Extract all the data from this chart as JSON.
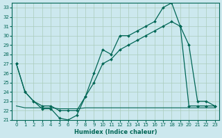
{
  "xlabel": "Humidex (Indice chaleur)",
  "bg_color": "#cce8ee",
  "grid_color": "#aaccbb",
  "line_color": "#006655",
  "xlim": [
    -0.5,
    23.5
  ],
  "ylim": [
    21,
    33.5
  ],
  "yticks": [
    21,
    22,
    23,
    24,
    25,
    26,
    27,
    28,
    29,
    30,
    31,
    32,
    33
  ],
  "xticks": [
    0,
    1,
    2,
    3,
    4,
    5,
    6,
    7,
    8,
    9,
    10,
    11,
    12,
    13,
    14,
    15,
    16,
    17,
    18,
    19,
    20,
    21,
    22,
    23
  ],
  "line1_x": [
    0,
    1,
    2,
    3,
    4,
    5,
    6,
    7,
    8,
    9,
    10,
    11,
    12,
    13,
    14,
    15,
    16,
    17,
    18,
    19,
    20,
    21,
    22,
    23
  ],
  "line1_y": [
    27.0,
    24.0,
    23.0,
    22.2,
    22.2,
    21.2,
    21.0,
    21.5,
    23.5,
    26.0,
    28.5,
    28.0,
    30.0,
    30.0,
    30.5,
    31.0,
    31.5,
    33.0,
    33.5,
    31.0,
    29.0,
    23.0,
    23.0,
    22.5
  ],
  "line2_x": [
    0,
    1,
    2,
    3,
    4,
    5,
    6,
    7,
    8,
    9,
    10,
    11,
    12,
    13,
    14,
    15,
    16,
    17,
    18,
    19,
    20,
    21,
    22,
    23
  ],
  "line2_y": [
    27.0,
    24.0,
    23.0,
    22.5,
    22.5,
    22.0,
    22.0,
    22.0,
    23.5,
    25.0,
    27.0,
    27.5,
    28.5,
    29.0,
    29.5,
    30.0,
    30.5,
    31.0,
    31.5,
    31.0,
    22.5,
    22.5,
    22.5,
    22.5
  ],
  "line3_x": [
    0,
    1,
    2,
    3,
    4,
    5,
    6,
    7,
    8,
    9,
    10,
    11,
    12,
    13,
    14,
    15,
    16,
    17,
    18,
    19,
    20,
    21,
    22,
    23
  ],
  "line3_y": [
    22.5,
    22.3,
    22.3,
    22.3,
    22.3,
    22.2,
    22.2,
    22.2,
    22.3,
    22.3,
    22.3,
    22.3,
    22.3,
    22.3,
    22.3,
    22.3,
    22.3,
    22.3,
    22.3,
    22.3,
    22.3,
    22.3,
    22.3,
    22.3
  ]
}
